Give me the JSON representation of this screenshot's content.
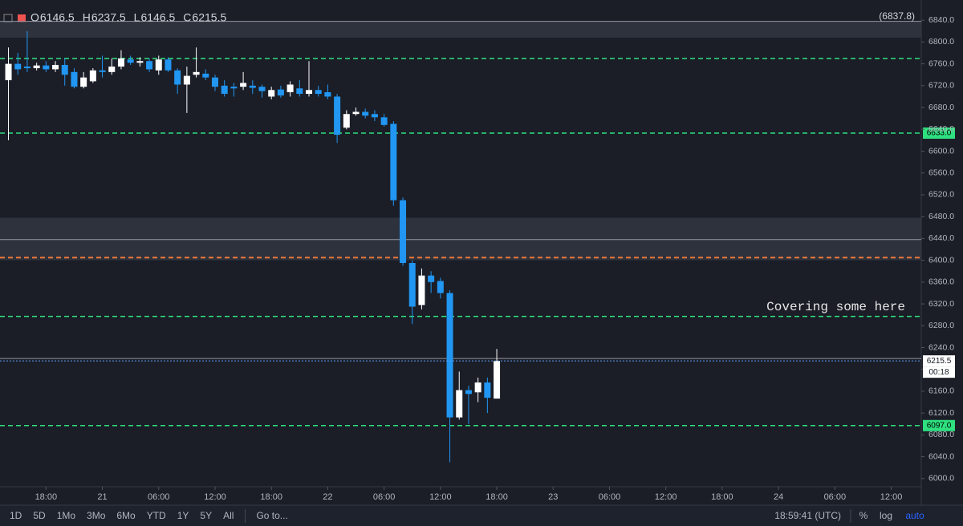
{
  "chart_data": {
    "type": "candlestick",
    "ohlc_labels": [
      "O",
      "H",
      "L",
      "C"
    ],
    "x": [
      14,
      15,
      16,
      17,
      18,
      19,
      20,
      21,
      22,
      23,
      24,
      25,
      26,
      27,
      28,
      29,
      30,
      31,
      32,
      33,
      34,
      35,
      36,
      37,
      38,
      39,
      40,
      41,
      42,
      43,
      44,
      45,
      46,
      47,
      48,
      49,
      50,
      51,
      52,
      53,
      54,
      55,
      56,
      57,
      58,
      59,
      60,
      61,
      62,
      63,
      64,
      65,
      66
    ],
    "open": [
      6730,
      6760,
      6755,
      6752,
      6757,
      6750,
      6758,
      6745,
      6718,
      6728,
      6748,
      6745,
      6755,
      6768,
      6762,
      6765,
      6748,
      6768,
      6748,
      6722,
      6740,
      6742,
      6735,
      6720,
      6718,
      6718,
      6720,
      6718,
      6700,
      6713,
      6708,
      6715,
      6705,
      6712,
      6708,
      6700,
      6643,
      6668,
      6672,
      6668,
      6662,
      6650,
      6510,
      6395,
      6318,
      6372,
      6362,
      6340,
      6112,
      6162,
      6158,
      6176,
      6146.5
    ],
    "high": [
      6790,
      6780,
      6820,
      6762,
      6765,
      6765,
      6770,
      6752,
      6745,
      6752,
      6775,
      6770,
      6785,
      6775,
      6772,
      6770,
      6775,
      6772,
      6752,
      6755,
      6790,
      6750,
      6740,
      6730,
      6725,
      6745,
      6730,
      6722,
      6718,
      6720,
      6728,
      6730,
      6765,
      6720,
      6722,
      6705,
      6675,
      6680,
      6678,
      6675,
      6668,
      6655,
      6515,
      6400,
      6385,
      6380,
      6368,
      6345,
      6196,
      6170,
      6185,
      6185,
      6237.5
    ],
    "low": [
      6620,
      6740,
      6745,
      6748,
      6745,
      6745,
      6720,
      6715,
      6715,
      6725,
      6735,
      6740,
      6750,
      6758,
      6755,
      6745,
      6740,
      6745,
      6705,
      6670,
      6735,
      6730,
      6710,
      6700,
      6700,
      6712,
      6705,
      6698,
      6695,
      6698,
      6700,
      6700,
      6700,
      6700,
      6695,
      6615,
      6640,
      6665,
      6660,
      6655,
      6645,
      6500,
      6390,
      6283,
      6310,
      6340,
      6330,
      6030,
      6108,
      6100,
      6140,
      6120,
      6146.5
    ],
    "close": [
      6760,
      6750,
      6752,
      6757,
      6750,
      6758,
      6740,
      6718,
      6735,
      6748,
      6745,
      6755,
      6770,
      6762,
      6765,
      6750,
      6768,
      6748,
      6722,
      6738,
      6745,
      6735,
      6718,
      6705,
      6715,
      6725,
      6716,
      6710,
      6712,
      6702,
      6722,
      6705,
      6712,
      6705,
      6700,
      6630,
      6668,
      6672,
      6665,
      6662,
      6648,
      6510,
      6395,
      6315,
      6372,
      6360,
      6340,
      6112,
      6162,
      6155,
      6176,
      6148,
      6215.5
    ],
    "up_color": "#ffffff",
    "down_color": "#2196f3",
    "xlim": [
      13.1,
      111.2
    ],
    "xticks": [
      {
        "value": 18,
        "label": "18:00"
      },
      {
        "value": 24,
        "label": "21"
      },
      {
        "value": 30,
        "label": "06:00"
      },
      {
        "value": 36,
        "label": "12:00"
      },
      {
        "value": 42,
        "label": "18:00"
      },
      {
        "value": 48,
        "label": "22"
      },
      {
        "value": 54,
        "label": "06:00"
      },
      {
        "value": 60,
        "label": "12:00"
      },
      {
        "value": 66,
        "label": "18:00"
      },
      {
        "value": 72,
        "label": "23"
      },
      {
        "value": 78,
        "label": "06:00"
      },
      {
        "value": 84,
        "label": "12:00"
      },
      {
        "value": 90,
        "label": "18:00"
      },
      {
        "value": 96,
        "label": "24"
      },
      {
        "value": 102,
        "label": "06:00"
      },
      {
        "value": 108,
        "label": "12:00"
      }
    ],
    "ylim": [
      5985,
      6877
    ],
    "yticks": [
      {
        "value": 6000,
        "label": "6000.0"
      },
      {
        "value": 6040,
        "label": "6040.0"
      },
      {
        "value": 6080,
        "label": "6080.0"
      },
      {
        "value": 6120,
        "label": "6120.0"
      },
      {
        "value": 6160,
        "label": "6160.0"
      },
      {
        "value": 6200,
        "label": "6200.0"
      },
      {
        "value": 6240,
        "label": "6240.0"
      },
      {
        "value": 6280,
        "label": "6280.0"
      },
      {
        "value": 6320,
        "label": "6320.0"
      },
      {
        "value": 6360,
        "label": "6360.0"
      },
      {
        "value": 6400,
        "label": "6400.0"
      },
      {
        "value": 6440,
        "label": "6440.0"
      },
      {
        "value": 6480,
        "label": "6480.0"
      },
      {
        "value": 6520,
        "label": "6520.0"
      },
      {
        "value": 6560,
        "label": "6560.0"
      },
      {
        "value": 6600,
        "label": "6600.0"
      },
      {
        "value": 6640,
        "label": "6640.0"
      },
      {
        "value": 6680,
        "label": "6680.0"
      },
      {
        "value": 6720,
        "label": "6720.0"
      },
      {
        "value": 6760,
        "label": "6760.0"
      },
      {
        "value": 6800,
        "label": "6800.0"
      },
      {
        "value": 6840,
        "label": "6840.0"
      }
    ],
    "levels": [
      {
        "value": 6770,
        "color": "#2ee07f"
      },
      {
        "value": 6633,
        "label": "6633.0",
        "color": "#2ee07f"
      },
      {
        "value": 6405,
        "color": "#f07a3a"
      },
      {
        "value": 6297,
        "color": "#2ee07f"
      },
      {
        "value": 6097,
        "label": "6097.0",
        "color": "#2ee07f"
      }
    ],
    "zones": [
      {
        "low": 6808,
        "high": 6837.8
      },
      {
        "low": 6400,
        "high": 6478
      }
    ],
    "lines": [
      {
        "value": 6837.8,
        "label": "(6837.8)"
      },
      {
        "value": 6438
      },
      {
        "value": 6220
      }
    ],
    "annotation": "Covering some here",
    "countdown": "00:18"
  },
  "toolbar": {
    "ranges": [
      "1D",
      "5D",
      "1Mo",
      "3Mo",
      "6Mo",
      "YTD",
      "1Y",
      "5Y",
      "All"
    ],
    "goto": "Go to...",
    "clock": "18:59:41 (UTC)",
    "scale": [
      "%",
      "log",
      "auto"
    ]
  }
}
